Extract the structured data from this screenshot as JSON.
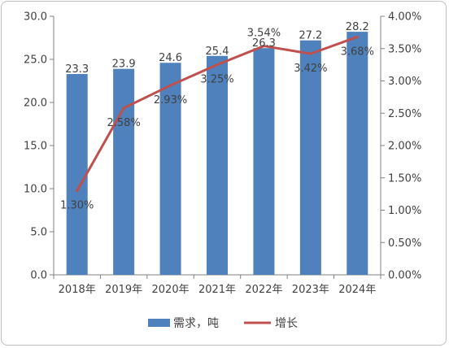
{
  "chart_data": {
    "type": "bar+line",
    "categories": [
      "2018年",
      "2019年",
      "2020年",
      "2021年",
      "2022年",
      "2023年",
      "2024年"
    ],
    "series": [
      {
        "name": "需求，吨",
        "type": "bar",
        "axis": "left",
        "color": "#4f81bd",
        "values": [
          23.3,
          23.9,
          24.6,
          25.4,
          26.3,
          27.2,
          28.2
        ],
        "labels": [
          "23.3",
          "23.9",
          "24.6",
          "25.4",
          "26.3",
          "27.2",
          "28.2"
        ]
      },
      {
        "name": "增长",
        "type": "line",
        "axis": "right",
        "color": "#c0504d",
        "values": [
          1.3,
          2.58,
          2.93,
          3.25,
          3.54,
          3.42,
          3.68
        ],
        "labels": [
          "1.30%",
          "2.58%",
          "2.93%",
          "3.25%",
          "3.54%",
          "3.42%",
          "3.68%"
        ]
      }
    ],
    "y_left": {
      "min": 0,
      "max": 30,
      "step": 5,
      "ticks": [
        "0.0",
        "5.0",
        "10.0",
        "15.0",
        "20.0",
        "25.0",
        "30.0"
      ]
    },
    "y_right": {
      "min": 0,
      "max": 4,
      "step": 0.5,
      "ticks": [
        "0.00%",
        "0.50%",
        "1.00%",
        "1.50%",
        "2.00%",
        "2.50%",
        "3.00%",
        "3.50%",
        "4.00%"
      ]
    },
    "grid": false,
    "legend": "bottom"
  }
}
